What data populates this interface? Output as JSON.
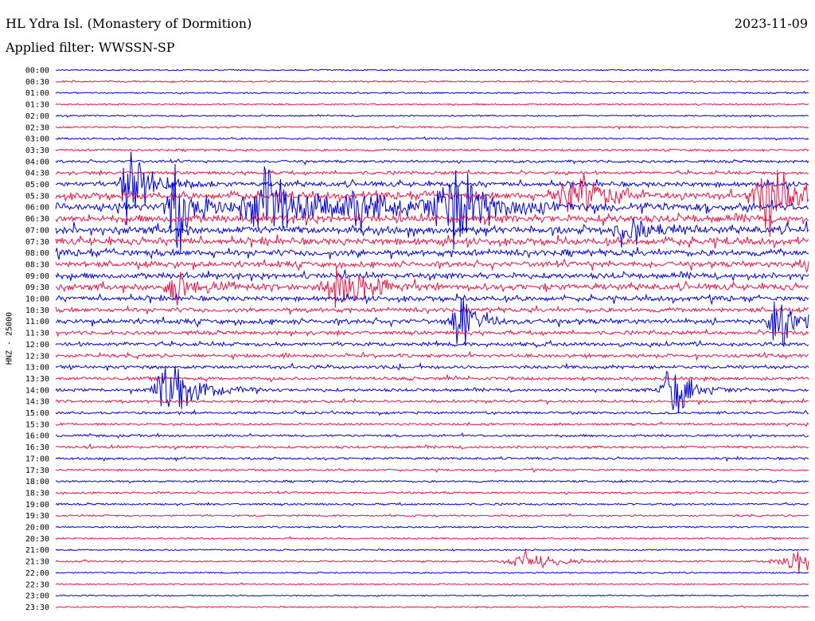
{
  "header": {
    "station": "HL Ydra Isl. (Monastery of Dormition)",
    "date": "2023-11-09",
    "filter": "Applied filter: WWSSN-SP"
  },
  "chart_data": {
    "type": "line",
    "title": "HL Ydra Isl. (Monastery of Dormition)",
    "subtitle": "Applied filter: WWSSN-SP",
    "ylabel": "HNZ - 25000",
    "xlabel": "",
    "grid": false,
    "legend": "none",
    "row_labels": [
      "00:00",
      "00:30",
      "01:00",
      "01:30",
      "02:00",
      "02:30",
      "03:00",
      "03:30",
      "04:00",
      "04:30",
      "05:00",
      "05:30",
      "06:00",
      "06:30",
      "07:00",
      "07:30",
      "08:00",
      "08:30",
      "09:00",
      "09:30",
      "10:00",
      "10:30",
      "11:00",
      "11:30",
      "12:00",
      "12:30",
      "13:00",
      "13:30",
      "14:00",
      "14:30",
      "15:00",
      "15:30",
      "16:00",
      "16:30",
      "17:00",
      "17:30",
      "18:00",
      "18:30",
      "19:00",
      "19:30",
      "20:00",
      "20:30",
      "21:00",
      "21:30",
      "22:00",
      "22:30",
      "23:00",
      "23:30"
    ],
    "colors": [
      "#0000dd",
      "#ee1144"
    ],
    "row_activity": [
      0.03,
      0.05,
      0.04,
      0.05,
      0.05,
      0.07,
      0.08,
      0.1,
      0.15,
      0.2,
      0.35,
      0.5,
      0.6,
      0.55,
      0.55,
      0.5,
      0.45,
      0.4,
      0.4,
      0.45,
      0.35,
      0.3,
      0.35,
      0.25,
      0.25,
      0.22,
      0.22,
      0.2,
      0.18,
      0.15,
      0.13,
      0.12,
      0.12,
      0.14,
      0.12,
      0.09,
      0.09,
      0.1,
      0.09,
      0.07,
      0.06,
      0.06,
      0.05,
      0.06,
      0.04,
      0.03,
      0.03,
      0.03
    ],
    "events": [
      {
        "row": 12,
        "x": 0.16,
        "amp": 1.0,
        "width": 0.02
      },
      {
        "row": 10,
        "x": 0.1,
        "amp": 0.9,
        "width": 0.02
      },
      {
        "row": 12,
        "x": 0.28,
        "amp": 0.8,
        "width": 0.04
      },
      {
        "row": 12,
        "x": 0.4,
        "amp": 0.7,
        "width": 0.03
      },
      {
        "row": 12,
        "x": 0.53,
        "amp": 0.9,
        "width": 0.04
      },
      {
        "row": 11,
        "x": 0.69,
        "amp": 0.7,
        "width": 0.03
      },
      {
        "row": 11,
        "x": 0.95,
        "amp": 0.8,
        "width": 0.03
      },
      {
        "row": 14,
        "x": 0.76,
        "amp": 0.5,
        "width": 0.02
      },
      {
        "row": 19,
        "x": 0.38,
        "amp": 0.6,
        "width": 0.03
      },
      {
        "row": 19,
        "x": 0.16,
        "amp": 0.5,
        "width": 0.02
      },
      {
        "row": 22,
        "x": 0.54,
        "amp": 0.6,
        "width": 0.02
      },
      {
        "row": 22,
        "x": 0.96,
        "amp": 0.6,
        "width": 0.02
      },
      {
        "row": 28,
        "x": 0.15,
        "amp": 0.7,
        "width": 0.03
      },
      {
        "row": 28,
        "x": 0.82,
        "amp": 0.7,
        "width": 0.02
      },
      {
        "row": 17,
        "x": 1.0,
        "amp": 0.4,
        "width": 0.02
      },
      {
        "row": 43,
        "x": 0.63,
        "amp": 0.2,
        "width": 0.04
      },
      {
        "row": 43,
        "x": 0.99,
        "amp": 0.25,
        "width": 0.05
      }
    ]
  }
}
